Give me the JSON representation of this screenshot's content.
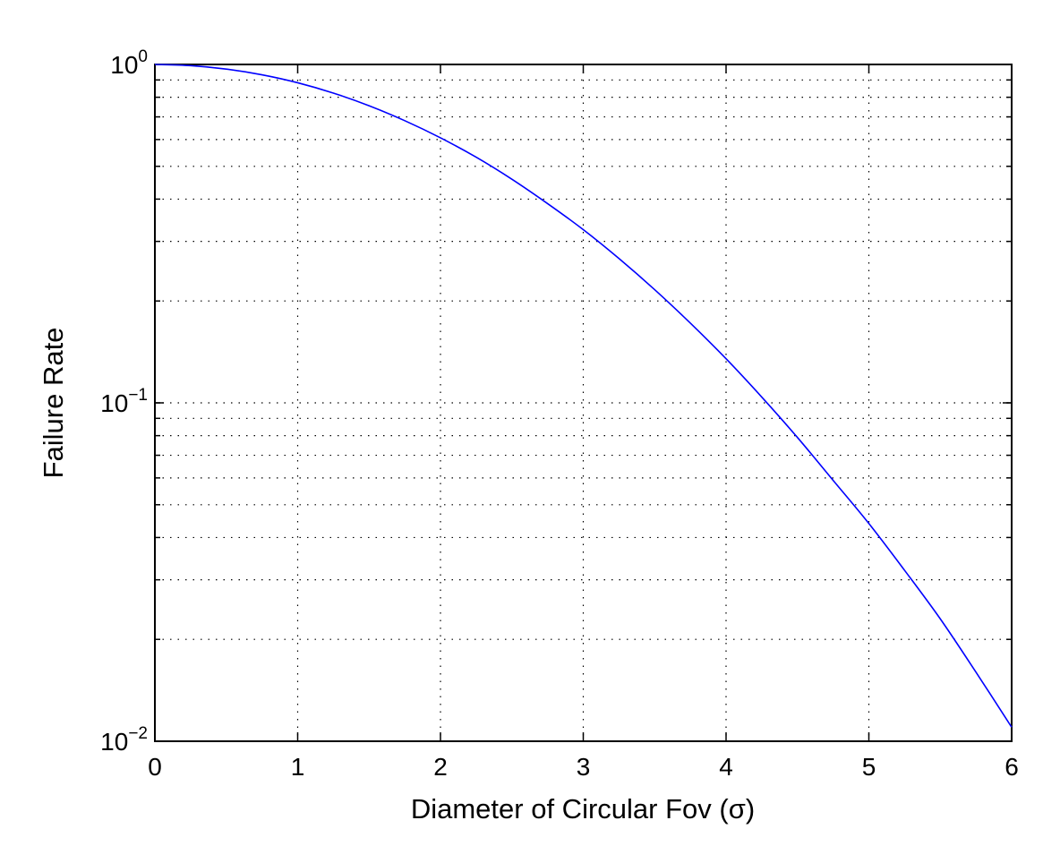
{
  "chart_data": {
    "type": "line",
    "title": "",
    "xlabel": "Diameter of Circular Fov (σ)",
    "ylabel": "Failure Rate",
    "xlim": [
      0,
      6
    ],
    "ylim": [
      0.01,
      1
    ],
    "yscale": "log",
    "grid": true,
    "x_ticks": [
      0,
      1,
      2,
      3,
      4,
      5,
      6
    ],
    "x_tick_labels": [
      "0",
      "1",
      "2",
      "3",
      "4",
      "5",
      "6"
    ],
    "y_ticks": [
      0.01,
      0.1,
      1
    ],
    "y_tick_labels": [
      {
        "base": "10",
        "exp": "−2"
      },
      {
        "base": "10",
        "exp": "−1"
      },
      {
        "base": "10",
        "exp": "0"
      }
    ],
    "series": [
      {
        "color": "#0000ff",
        "x": [
          0,
          0.25,
          0.5,
          0.75,
          1.0,
          1.25,
          1.5,
          1.75,
          2.0,
          2.25,
          2.5,
          2.75,
          3.0,
          3.25,
          3.5,
          3.75,
          4.0,
          4.25,
          4.5,
          4.75,
          5.0,
          5.25,
          5.5,
          5.75,
          6.0
        ],
        "y": [
          1.0,
          0.992,
          0.969,
          0.932,
          0.883,
          0.823,
          0.755,
          0.682,
          0.607,
          0.532,
          0.458,
          0.388,
          0.325,
          0.267,
          0.216,
          0.172,
          0.135,
          0.104,
          0.079,
          0.059,
          0.044,
          0.032,
          0.023,
          0.016,
          0.011
        ]
      }
    ]
  }
}
